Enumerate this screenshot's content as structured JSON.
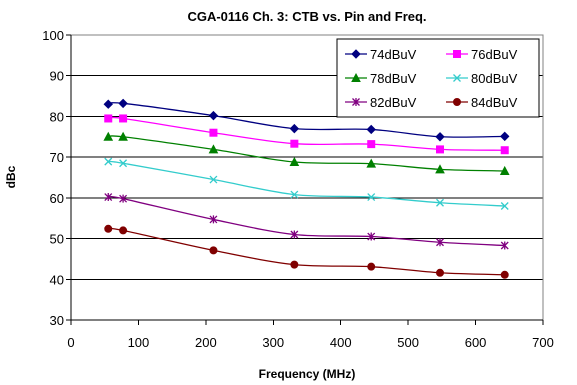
{
  "chart_data": {
    "type": "line",
    "title": "CGA-0116 Ch. 3: CTB vs. Pin and Freq.",
    "xlabel": "Frequency (MHz)",
    "ylabel": "dBc",
    "xlim": [
      0,
      700
    ],
    "ylim": [
      30,
      100
    ],
    "xticks": [
      0,
      100,
      200,
      300,
      400,
      500,
      600,
      700
    ],
    "yticks": [
      30,
      40,
      50,
      60,
      70,
      80,
      90,
      100
    ],
    "grid": "horizontal",
    "legend_position": "top-right",
    "x": [
      55.25,
      77.25,
      211.25,
      331.25,
      445.25,
      547.25,
      643.25
    ],
    "series": [
      {
        "name": "74dBuV",
        "color": "#000080",
        "marker": "diamond",
        "values": [
          83,
          83.2,
          80.2,
          77,
          76.8,
          75,
          75.1
        ]
      },
      {
        "name": "76dBuV",
        "color": "#ff00ff",
        "marker": "square",
        "values": [
          79.5,
          79.5,
          76,
          73.3,
          73.2,
          71.9,
          71.7
        ]
      },
      {
        "name": "78dBuV",
        "color": "#008000",
        "marker": "triangle",
        "values": [
          75,
          75,
          71.9,
          68.8,
          68.4,
          67,
          66.6
        ]
      },
      {
        "name": "80dBuV",
        "color": "#33cccc",
        "marker": "x",
        "values": [
          68.9,
          68.5,
          64.5,
          60.8,
          60.2,
          58.8,
          58
        ]
      },
      {
        "name": "82dBuV",
        "color": "#800080",
        "marker": "star",
        "values": [
          60.2,
          59.8,
          54.7,
          51,
          50.5,
          49.1,
          48.3
        ]
      },
      {
        "name": "84dBuV",
        "color": "#800000",
        "marker": "circle",
        "values": [
          52.4,
          52,
          47.1,
          43.6,
          43.1,
          41.6,
          41.1
        ]
      }
    ]
  }
}
